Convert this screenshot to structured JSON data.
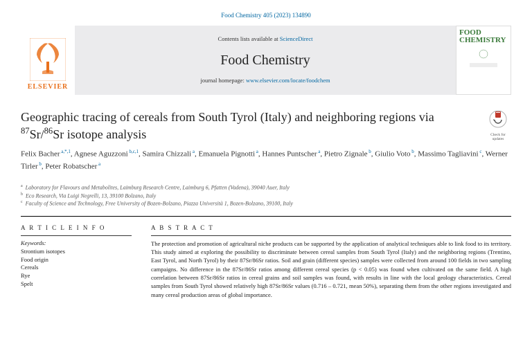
{
  "citation": "Food Chemistry 405 (2023) 134890",
  "header": {
    "contents_prefix": "Contents lists available at ",
    "contents_link": "ScienceDirect",
    "journal": "Food Chemistry",
    "homepage_prefix": "journal homepage: ",
    "homepage_link": "www.elsevier.com/locate/foodchem",
    "publisher": "ELSEVIER",
    "cover_title": "FOOD CHEMISTRY"
  },
  "title_pre": "Geographic tracing of cereals from South Tyrol (Italy) and neighboring regions via ",
  "title_iso1": "87",
  "title_mid": "Sr/",
  "title_iso2": "86",
  "title_post": "Sr isotope analysis",
  "check": {
    "l1": "Check for",
    "l2": "updates"
  },
  "authors": [
    {
      "name": "Felix Bacher",
      "aff": "a,*,1"
    },
    {
      "name": "Agnese Aguzzoni",
      "aff": "b,c,1"
    },
    {
      "name": "Samira Chizzali",
      "aff": "a"
    },
    {
      "name": "Emanuela Pignotti",
      "aff": "a"
    },
    {
      "name": "Hannes Puntscher",
      "aff": "a"
    },
    {
      "name": "Pietro Zignale",
      "aff": "b"
    },
    {
      "name": "Giulio Voto",
      "aff": "b"
    },
    {
      "name": "Massimo Tagliavini",
      "aff": "c"
    },
    {
      "name": "Werner Tirler",
      "aff": "b"
    },
    {
      "name": "Peter Robatscher",
      "aff": "a"
    }
  ],
  "affiliations": [
    {
      "key": "a",
      "text": "Laboratory for Flavours and Metabolites, Laimburg Research Centre, Laimburg 6, Pfatten (Vadena), 39040 Auer, Italy"
    },
    {
      "key": "b",
      "text": "Eco Research, Via Luigi Negrelli, 13, 39100 Bolzano, Italy"
    },
    {
      "key": "c",
      "text": "Faculty of Science and Technology, Free University of Bozen-Bolzano, Piazza Università 1, Bozen-Bolzano, 39100, Italy"
    }
  ],
  "articleinfo": {
    "head": "A R T I C L E  I N F O",
    "kw_label": "Keywords:",
    "keywords": [
      "Strontium isotopes",
      "Food origin",
      "Cereals",
      "Rye",
      "Spelt"
    ]
  },
  "abstract": {
    "head": "A B S T R A C T",
    "text": "The protection and promotion of agricultural niche products can be supported by the application of analytical techniques able to link food to its territory. This study aimed at exploring the possibility to discriminate between cereal samples from South Tyrol (Italy) and the neighboring regions (Trentino, East Tyrol, and North Tyrol) by their 87Sr/86Sr ratios. Soil and grain (different species) samples were collected from around 100 fields in two sampling campaigns. No difference in the 87Sr/86Sr ratios among different cereal species (p < 0.05) was found when cultivated on the same field. A high correlation between 87Sr/86Sr ratios in cereal grains and soil samples was found, with results in line with the local geology characteristics. Cereal samples from South Tyrol showed relatively high 87Sr/86Sr values (0.716 – 0.721, mean 50%), separating them from the other regions investigated and many cereal production areas of global importance."
  }
}
